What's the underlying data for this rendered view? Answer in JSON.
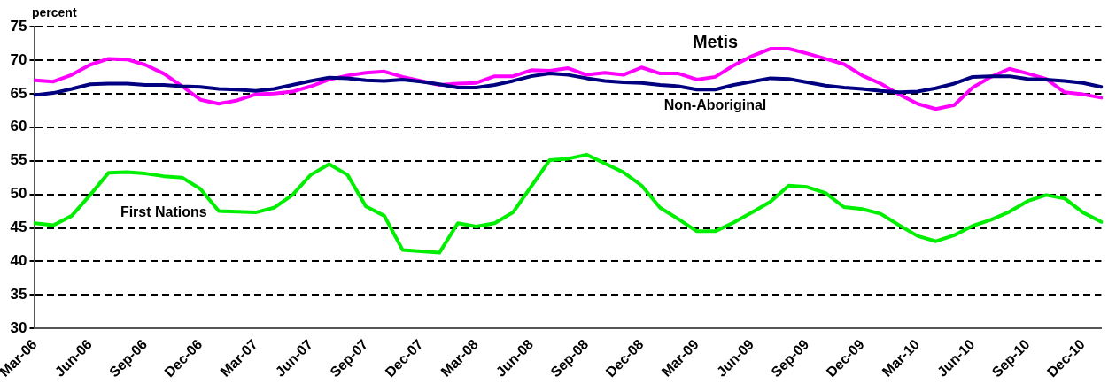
{
  "chart_data": {
    "type": "line",
    "ylabel": "percent",
    "categories": [
      "Mar-06",
      null,
      null,
      "Jun-06",
      null,
      null,
      "Sep-06",
      null,
      null,
      "Dec-06",
      null,
      null,
      "Mar-07",
      null,
      null,
      "Jun-07",
      null,
      null,
      "Sep-07",
      null,
      null,
      "Dec-07",
      null,
      null,
      "Mar-08",
      null,
      null,
      "Jun-08",
      null,
      null,
      "Sep-08",
      null,
      null,
      "Dec-08",
      null,
      null,
      "Mar-09",
      null,
      null,
      "Jun-09",
      null,
      null,
      "Sep-09",
      null,
      null,
      "Dec-09",
      null,
      null,
      "Mar-10",
      null,
      null,
      "Jun-10",
      null,
      null,
      "Sep-10",
      null,
      null,
      "Dec-10",
      null
    ],
    "series": [
      {
        "name": "Non-Aboriginal",
        "color": "#000080",
        "values": [
          64.8,
          65.1,
          65.7,
          66.4,
          66.5,
          66.5,
          66.3,
          66.3,
          66.1,
          66.0,
          65.7,
          65.6,
          65.4,
          65.7,
          66.3,
          66.9,
          67.4,
          67.3,
          67.0,
          66.9,
          67.1,
          66.8,
          66.4,
          65.9,
          65.9,
          66.3,
          66.9,
          67.6,
          68.0,
          67.8,
          67.3,
          66.9,
          66.7,
          66.6,
          66.3,
          66.1,
          65.6,
          65.6,
          66.3,
          66.8,
          67.3,
          67.2,
          66.7,
          66.2,
          65.9,
          65.7,
          65.4,
          65.2,
          65.3,
          65.8,
          66.5,
          67.5,
          67.6,
          67.6,
          67.2,
          67.1,
          66.9,
          66.6,
          66.0
        ]
      },
      {
        "name": "Metis",
        "color": "#ff00ff",
        "values": [
          67.0,
          66.8,
          67.8,
          69.3,
          70.2,
          70.1,
          69.3,
          68.0,
          66.1,
          64.1,
          63.5,
          64.0,
          64.9,
          65.0,
          65.3,
          66.1,
          67.1,
          67.7,
          68.1,
          68.3,
          67.5,
          66.9,
          66.3,
          66.5,
          66.6,
          67.6,
          67.6,
          68.5,
          68.4,
          68.8,
          67.8,
          68.1,
          67.8,
          68.9,
          68.0,
          68.0,
          67.1,
          67.5,
          69.2,
          70.6,
          71.7,
          71.7,
          71.0,
          70.2,
          69.4,
          67.7,
          66.5,
          64.9,
          63.5,
          62.7,
          63.3,
          65.9,
          67.5,
          68.7,
          68.0,
          67.2,
          65.2,
          64.9,
          64.4
        ]
      },
      {
        "name": "First Nations",
        "color": "#00ee00",
        "values": [
          45.7,
          45.4,
          46.8,
          49.9,
          53.2,
          53.3,
          53.1,
          52.7,
          52.5,
          50.8,
          47.5,
          47.4,
          47.3,
          48.0,
          49.9,
          52.9,
          54.5,
          52.9,
          48.2,
          46.8,
          41.7,
          41.5,
          41.3,
          45.7,
          45.2,
          45.7,
          47.3,
          51.2,
          55.1,
          55.3,
          55.9,
          54.6,
          53.3,
          51.3,
          48.0,
          46.3,
          44.5,
          44.5,
          45.8,
          47.3,
          48.9,
          51.3,
          51.1,
          50.2,
          48.1,
          47.8,
          47.1,
          45.4,
          43.8,
          43.0,
          43.9,
          45.3,
          46.2,
          47.4,
          49.0,
          49.9,
          49.4,
          47.3,
          45.9
        ]
      }
    ],
    "ylim": [
      30,
      75
    ],
    "yticks": [
      30,
      35,
      40,
      45,
      50,
      55,
      60,
      65,
      70,
      75
    ],
    "grid": "y",
    "legend": false,
    "marker": "none",
    "line_style": "solid"
  }
}
